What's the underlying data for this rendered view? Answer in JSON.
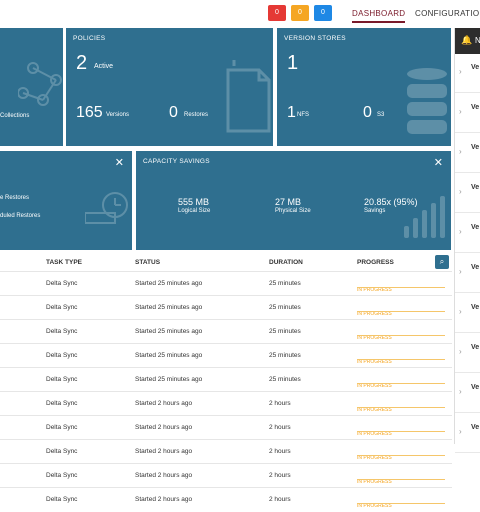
{
  "header": {
    "badges": [
      {
        "label": "0",
        "color": "#e53935"
      },
      {
        "label": "0",
        "color": "#f5a623"
      },
      {
        "label": "0",
        "color": "#1e88e5"
      }
    ],
    "nav": {
      "dashboard": "DASHBOARD",
      "configuration": "CONFIGURATION"
    }
  },
  "tiles": {
    "collections": {
      "label": "Collections"
    },
    "policies": {
      "title": "POLICIES",
      "active_count": "2",
      "active_label": "Active",
      "versions_count": "165",
      "versions_label": "Versions",
      "restores_count": "0",
      "restores_label": "Restores"
    },
    "version_stores": {
      "title": "VERSION STORES",
      "count": "1",
      "nfs_count": "1",
      "nfs_label": "NFS",
      "s3_count": "0",
      "s3_label": "S3"
    },
    "restores": {
      "line1": "e Restores",
      "line2": "duled Restores"
    },
    "capacity": {
      "title": "CAPACITY SAVINGS",
      "logical_value": "555 MB",
      "logical_label": "Logical Size",
      "physical_value": "27 MB",
      "physical_label": "Physical Size",
      "savings_value": "20.85x (95%)",
      "savings_label": "Savings"
    }
  },
  "sidebar": {
    "header_label": "N",
    "items": [
      "Ve",
      "Ve",
      "Ve",
      "Ve",
      "Ve",
      "Ve",
      "Ve",
      "Ve",
      "Ve",
      "Ve"
    ]
  },
  "table": {
    "headers": {
      "task_type": "TASK TYPE",
      "status": "STATUS",
      "duration": "DURATION",
      "progress": "PROGRESS"
    },
    "rows": [
      {
        "task_type": "Delta Sync",
        "status": "Started 25 minutes ago",
        "duration": "25 minutes",
        "progress": "IN PROGRESS"
      },
      {
        "task_type": "Delta Sync",
        "status": "Started 25 minutes ago",
        "duration": "25 minutes",
        "progress": "IN PROGRESS"
      },
      {
        "task_type": "Delta Sync",
        "status": "Started 25 minutes ago",
        "duration": "25 minutes",
        "progress": "IN PROGRESS"
      },
      {
        "task_type": "Delta Sync",
        "status": "Started 25 minutes ago",
        "duration": "25 minutes",
        "progress": "IN PROGRESS"
      },
      {
        "task_type": "Delta Sync",
        "status": "Started 25 minutes ago",
        "duration": "25 minutes",
        "progress": "IN PROGRESS"
      },
      {
        "task_type": "Delta Sync",
        "status": "Started 2 hours ago",
        "duration": "2 hours",
        "progress": "IN PROGRESS"
      },
      {
        "task_type": "Delta Sync",
        "status": "Started 2 hours ago",
        "duration": "2 hours",
        "progress": "IN PROGRESS"
      },
      {
        "task_type": "Delta Sync",
        "status": "Started 2 hours ago",
        "duration": "2 hours",
        "progress": "IN PROGRESS"
      },
      {
        "task_type": "Delta Sync",
        "status": "Started 2 hours ago",
        "duration": "2 hours",
        "progress": "IN PROGRESS"
      },
      {
        "task_type": "Delta Sync",
        "status": "Started 2 hours ago",
        "duration": "2 hours",
        "progress": "IN PROGRESS"
      }
    ]
  },
  "icons": {
    "close": "close-icon",
    "search": "search-icon",
    "bell": "bell-icon",
    "chevron": "chevron-right-icon"
  },
  "colors": {
    "tile": "#2f6f8f",
    "accent": "#7a1a2a",
    "progress": "#f5a623"
  }
}
